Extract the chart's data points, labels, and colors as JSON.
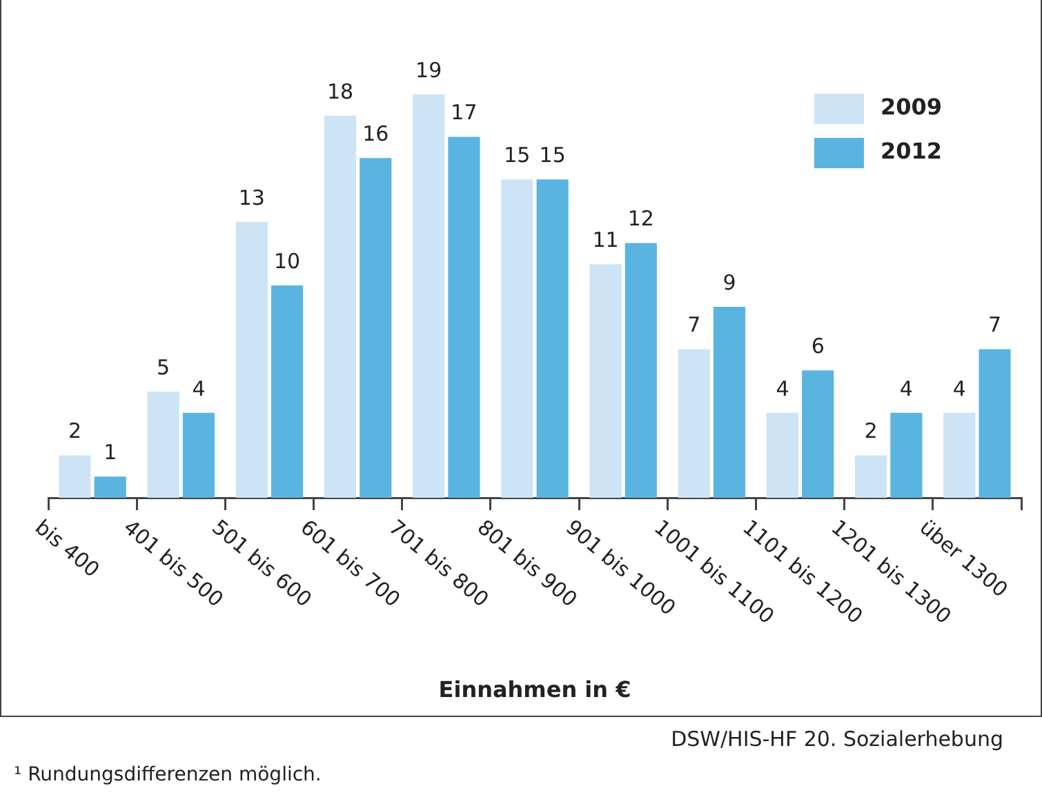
{
  "chart_data": {
    "type": "bar",
    "xlabel": "Einnahmen in €",
    "categories": [
      "bis 400",
      "401 bis 500",
      "501 bis 600",
      "601 bis 700",
      "701 bis 800",
      "801 bis 900",
      "901 bis 1000",
      "1001 bis 1100",
      "1101 bis 1200",
      "1201 bis 1300",
      "über 1300"
    ],
    "series": [
      {
        "name": "2009",
        "color": "#cce4f5",
        "values": [
          2,
          5,
          13,
          18,
          19,
          15,
          11,
          7,
          4,
          2,
          4
        ]
      },
      {
        "name": "2012",
        "color": "#5ab4e0",
        "values": [
          1,
          4,
          10,
          16,
          17,
          15,
          12,
          9,
          6,
          4,
          7
        ]
      }
    ],
    "data_labels": true,
    "legend": "top right",
    "annotations": [
      "DSW/HIS-HF 20. Sozialerhebung",
      "¹ Rundungsdifferenzen möglich."
    ]
  }
}
